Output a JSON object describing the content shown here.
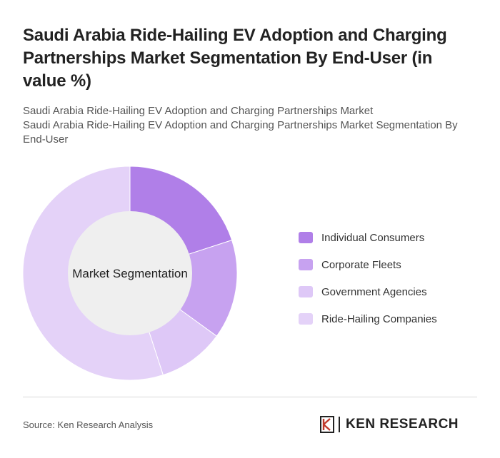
{
  "header": {
    "title": "Saudi Arabia Ride-Hailing EV Adoption and Charging Partnerships Market Segmentation By End-User (in value %)",
    "subtitle_line1": "Saudi Arabia Ride-Hailing EV Adoption and Charging Partnerships Market",
    "subtitle_line2": "Saudi Arabia Ride-Hailing EV Adoption and Charging Partnerships Market Segmentation By End-User"
  },
  "chart_data": {
    "type": "pie",
    "donut": true,
    "center_label": "Market Segmentation",
    "categories": [
      "Individual Consumers",
      "Corporate Fleets",
      "Government Agencies",
      "Ride-Hailing Companies"
    ],
    "values": [
      20,
      15,
      10,
      55
    ],
    "colors": [
      "#b07fe8",
      "#c7a2f0",
      "#dec8f7",
      "#e4d2f8"
    ],
    "legend_position": "right"
  },
  "footer": {
    "source": "Source: Ken Research Analysis",
    "brand": "KEN RESEARCH"
  }
}
